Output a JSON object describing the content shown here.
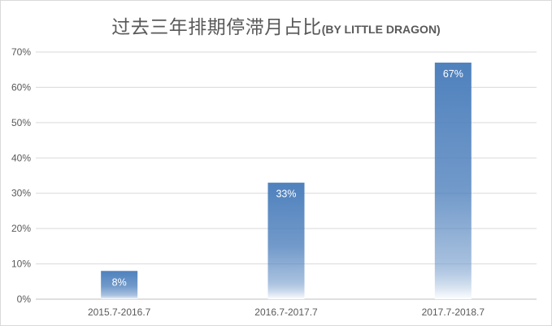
{
  "chart_data": {
    "type": "bar",
    "title": "过去三年排期停滞月占比",
    "subtitle": "(BY LITTLE DRAGON)",
    "categories": [
      "2015.7-2016.7",
      "2016.7-2017.7",
      "2017.7-2018.7"
    ],
    "values": [
      8,
      33,
      67
    ],
    "data_labels": [
      "8%",
      "33%",
      "67%"
    ],
    "ylim": [
      0,
      70
    ],
    "yticks": [
      0,
      10,
      20,
      30,
      40,
      50,
      60,
      70
    ],
    "ytick_labels": [
      "0%",
      "10%",
      "20%",
      "30%",
      "40%",
      "50%",
      "60%",
      "70%"
    ],
    "grid": true,
    "legend": "none",
    "colors": {
      "bar": "#4f81bd",
      "bar_fade": "#ffffff",
      "grid": "#d9d9d9",
      "text": "#595959"
    }
  }
}
